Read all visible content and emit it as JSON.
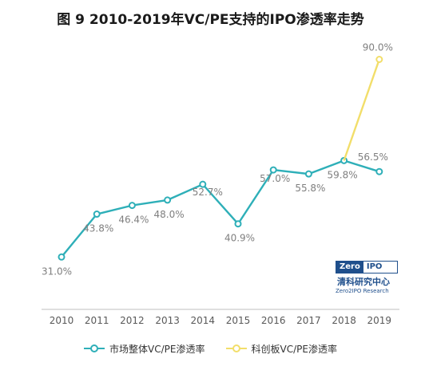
{
  "chart_data": {
    "type": "line",
    "title": "图 9 2010-2019年VC/PE支持的IPO渗透率走势",
    "categories": [
      "2010",
      "2011",
      "2012",
      "2013",
      "2014",
      "2015",
      "2016",
      "2017",
      "2018",
      "2019"
    ],
    "series": [
      {
        "name": "市场整体VC/PE渗透率",
        "color": "#2eafb8",
        "values": [
          31.0,
          43.8,
          46.4,
          48.0,
          52.7,
          40.9,
          57.0,
          55.8,
          59.8,
          56.5
        ],
        "labels": [
          "31.0%",
          "43.8%",
          "46.4%",
          "48.0%",
          "52.7%",
          "40.9%",
          "57.0%",
          "55.8%",
          "59.8%",
          "56.5%"
        ]
      },
      {
        "name": "科创板VC/PE渗透率",
        "color": "#f2de6a",
        "values": [
          null,
          null,
          null,
          null,
          null,
          null,
          null,
          null,
          59.8,
          90.0
        ],
        "labels": [
          null,
          null,
          null,
          null,
          null,
          null,
          null,
          null,
          null,
          "90.0%"
        ]
      }
    ],
    "xlabel": "",
    "ylabel": "",
    "ylim": [
      20,
      95
    ],
    "grid": false,
    "legend_position": "bottom"
  },
  "logo": {
    "word_left": "Zero",
    "word_right": "IPO",
    "cn": "清科研究中心",
    "en": "Zero2IPO Research"
  }
}
